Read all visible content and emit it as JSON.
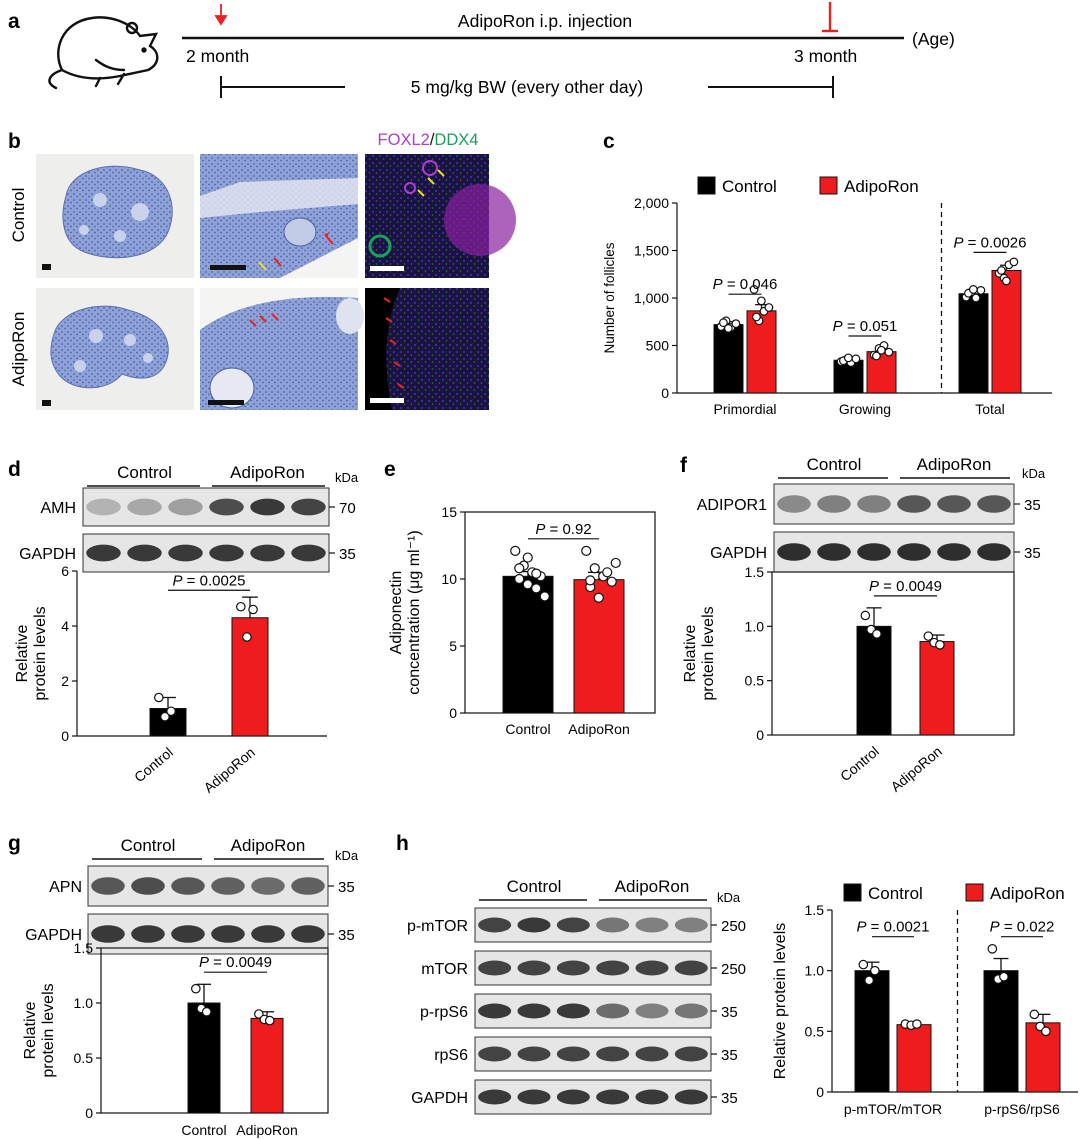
{
  "panel_letters": {
    "a": "a",
    "b": "b",
    "c": "c",
    "d": "d",
    "e": "e",
    "f": "f",
    "g": "g",
    "h": "h"
  },
  "timeline": {
    "title": "AdipoRon i.p. injection",
    "start_label": "2 month",
    "end_label": "3 month",
    "age_label": "(Age)",
    "dose_label": "5 mg/kg BW (every other day)",
    "icon": "mouse-icon"
  },
  "micrographs": {
    "stain_label_1": "FOXL2",
    "stain_sep": "/",
    "stain_label_2": "DDX4",
    "rows": [
      "Control",
      "AdipoRon"
    ]
  },
  "colors": {
    "control": "#000000",
    "adiporon": "#ee1c1c",
    "foxl2": "#b23bd1",
    "ddx4": "#1aa05a",
    "stain_blue": "#7f94cf",
    "arrow_red": "#e8221e",
    "arrow_yellow": "#f0e01a"
  },
  "blots": {
    "d": {
      "group1": "Control",
      "group2": "AdipoRon",
      "kda": "kDa",
      "bands": [
        {
          "name": "AMH",
          "kda": "70"
        },
        {
          "name": "GAPDH",
          "kda": "35"
        }
      ]
    },
    "f": {
      "group1": "Control",
      "group2": "AdipoRon",
      "kda": "kDa",
      "bands": [
        {
          "name": "ADIPOR1",
          "kda": "35"
        },
        {
          "name": "GAPDH",
          "kda": "35"
        }
      ]
    },
    "g": {
      "group1": "Control",
      "group2": "AdipoRon",
      "kda": "kDa",
      "bands": [
        {
          "name": "APN",
          "kda": "35"
        },
        {
          "name": "GAPDH",
          "kda": "35"
        }
      ]
    },
    "h": {
      "group1": "Control",
      "group2": "AdipoRon",
      "kda": "kDa",
      "bands": [
        {
          "name": "p-mTOR",
          "kda": "250"
        },
        {
          "name": "mTOR",
          "kda": "250"
        },
        {
          "name": "p-rpS6",
          "kda": "35"
        },
        {
          "name": "rpS6",
          "kda": "35"
        },
        {
          "name": "GAPDH",
          "kda": "35"
        }
      ]
    }
  },
  "chart_data": [
    {
      "id": "c",
      "type": "bar",
      "ylabel": "Number of follicles",
      "ylim": [
        0,
        2000
      ],
      "yticks": [
        0,
        500,
        1000,
        1500,
        2000
      ],
      "ytick_labels": [
        "0",
        "500",
        "1,000",
        "1,500",
        "2,000"
      ],
      "categories": [
        "Primordial",
        "Growing",
        "Total"
      ],
      "legend": "top",
      "divider_after": "Growing",
      "series": [
        {
          "name": "Control",
          "values": [
            720,
            345,
            1045
          ],
          "errors": [
            30,
            20,
            45
          ],
          "points": [
            [
              700,
              760,
              690,
              730,
              740,
              680
            ],
            [
              330,
              350,
              320,
              360,
              340,
              370
            ],
            [
              1010,
              1060,
              1000,
              1080,
              1050,
              1090
            ]
          ]
        },
        {
          "name": "AdipoRon",
          "values": [
            865,
            435,
            1290
          ],
          "errors": [
            65,
            30,
            55
          ],
          "points": [
            [
              1090,
              760,
              860,
              900,
              800,
              970
            ],
            [
              400,
              470,
              500,
              430,
              390,
              450
            ],
            [
              1260,
              1210,
              1350,
              1380,
              1290,
              1180
            ]
          ]
        }
      ],
      "pvalues": [
        {
          "text": "P = 0.046",
          "category": "Primordial",
          "y": 1040
        },
        {
          "text": "P = 0.051",
          "category": "Growing",
          "y": 600
        },
        {
          "text": "P = 0.0026",
          "category": "Total",
          "y": 1480
        }
      ]
    },
    {
      "id": "d",
      "type": "bar",
      "ylabel": "Relative protein levels",
      "ylim": [
        0,
        6
      ],
      "yticks": [
        0,
        2,
        4,
        6
      ],
      "ytick_labels": [
        "0",
        "2",
        "4",
        "6"
      ],
      "categories": [
        "Control",
        "AdipoRon"
      ],
      "series": [
        {
          "name": "Relative protein levels",
          "values": [
            1.0,
            4.3
          ],
          "errors": [
            0.4,
            0.75
          ],
          "points": [
            [
              1.4,
              0.7,
              0.9
            ],
            [
              4.7,
              3.6,
              4.6
            ]
          ]
        }
      ],
      "pvalues": [
        {
          "text": "P = 0.0025",
          "y": 5.3
        }
      ]
    },
    {
      "id": "e",
      "type": "bar",
      "ylabel": "Adiponectin concentration (μg ml⁻¹)",
      "ylim": [
        0,
        15
      ],
      "yticks": [
        0,
        5,
        10,
        15
      ],
      "ytick_labels": [
        "0",
        "5",
        "10",
        "15"
      ],
      "categories": [
        "Control",
        "AdipoRon"
      ],
      "series": [
        {
          "name": "Adiponectin concentration",
          "values": [
            10.2,
            9.95
          ],
          "errors": [
            0.35,
            0.55
          ],
          "points": [
            [
              12.1,
              11.0,
              10.5,
              10.2,
              10.0,
              9.6,
              9.3,
              8.7,
              10.8,
              11.6,
              10.4
            ],
            [
              12.1,
              10.8,
              10.2,
              9.8,
              9.4,
              8.6,
              10.5,
              11.2,
              9.9
            ]
          ]
        }
      ],
      "pvalues": [
        {
          "text": "P = 0.92",
          "y": 13.0
        }
      ]
    },
    {
      "id": "f",
      "type": "bar",
      "ylabel": "Relative protein levels",
      "ylim": [
        0,
        1.5
      ],
      "yticks": [
        0,
        0.5,
        1.0,
        1.5
      ],
      "ytick_labels": [
        "0",
        "0.5",
        "1.0",
        "1.5"
      ],
      "categories": [
        "Control",
        "AdipoRon"
      ],
      "series": [
        {
          "name": "Relative protein levels",
          "values": [
            1.0,
            0.86
          ],
          "errors": [
            0.17,
            0.06
          ],
          "points": [
            [
              1.1,
              0.97,
              0.93
            ],
            [
              0.91,
              0.85,
              0.83
            ]
          ]
        }
      ],
      "pvalues": [
        {
          "text": "P = 0.0049",
          "y": 1.28
        }
      ]
    },
    {
      "id": "g",
      "type": "bar",
      "ylabel": "Relative protein levels",
      "ylim": [
        0,
        1.5
      ],
      "yticks": [
        0,
        0.5,
        1.0,
        1.5
      ],
      "ytick_labels": [
        "0",
        "0.5",
        "1.0",
        "1.5"
      ],
      "categories": [
        "Control",
        "AdipoRon"
      ],
      "series": [
        {
          "name": "Relative protein levels",
          "values": [
            1.0,
            0.86
          ],
          "errors": [
            0.17,
            0.06
          ],
          "points": [
            [
              1.13,
              0.95,
              0.92
            ],
            [
              0.9,
              0.85,
              0.84
            ]
          ]
        }
      ],
      "pvalues": [
        {
          "text": "P = 0.0049",
          "y": 1.28
        }
      ]
    },
    {
      "id": "h",
      "type": "bar",
      "ylabel": "Relative protein levels",
      "ylim": [
        0,
        1.5
      ],
      "yticks": [
        0,
        0.5,
        1.0,
        1.5
      ],
      "ytick_labels": [
        "0",
        "0.5",
        "1.0",
        "1.5"
      ],
      "categories": [
        "p-mTOR/mTOR",
        "p-rpS6/rpS6"
      ],
      "legend": "top",
      "divider_after": "p-mTOR/mTOR",
      "series": [
        {
          "name": "Control",
          "values": [
            1.0,
            1.0
          ],
          "errors": [
            0.07,
            0.1
          ],
          "points": [
            [
              1.05,
              0.92,
              1.0
            ],
            [
              1.18,
              0.93,
              0.95
            ]
          ]
        },
        {
          "name": "AdipoRon",
          "values": [
            0.555,
            0.57
          ],
          "errors": [
            0.015,
            0.07
          ],
          "points": [
            [
              0.56,
              0.55,
              0.56
            ],
            [
              0.64,
              0.54,
              0.5
            ]
          ]
        }
      ],
      "pvalues": [
        {
          "text": "P = 0.0021",
          "category": "p-mTOR/mTOR",
          "y": 1.28
        },
        {
          "text": "P = 0.022",
          "category": "p-rpS6/rpS6",
          "y": 1.28
        }
      ]
    }
  ]
}
